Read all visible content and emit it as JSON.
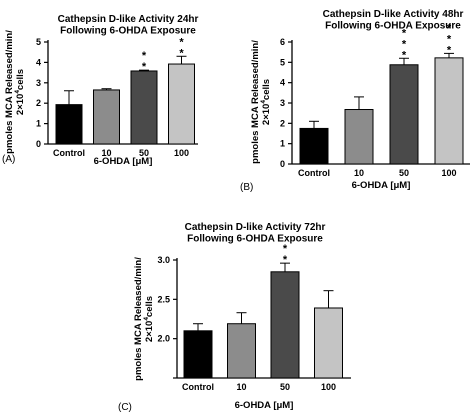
{
  "chart_data": [
    {
      "panel_label": "(A)",
      "type": "bar",
      "title": [
        "Cathepsin D-like Activity 24hr",
        "Following 6-OHDA Exposure"
      ],
      "xlabel": "6-OHDA [μM]",
      "ylabel": [
        "pmoles MCA Released/min/",
        "2×10",
        "4",
        "cells"
      ],
      "categories": [
        "Control",
        "10",
        "50",
        "100"
      ],
      "values": [
        1.93,
        2.65,
        3.58,
        3.92
      ],
      "errors": [
        0.68,
        0.06,
        0.04,
        0.38
      ],
      "significance": [
        "",
        "",
        "*\n*",
        "*\n*"
      ],
      "ylim": [
        0,
        5
      ],
      "yticks": [
        0,
        1,
        2,
        3,
        4,
        5
      ],
      "bar_colors": [
        "#000000",
        "#8c8c8c",
        "#4a4a4a",
        "#c4c4c4"
      ]
    },
    {
      "panel_label": "(B)",
      "type": "bar",
      "title": [
        "Cathepsin D-like Activity 48hr",
        "Following 6-OHDA Exposure"
      ],
      "xlabel": "6-OHDA [μM]",
      "ylabel": [
        "pmoles MCA Released/min/",
        "2×10",
        "4",
        "cells"
      ],
      "categories": [
        "Control",
        "10",
        "50",
        "100"
      ],
      "values": [
        1.75,
        2.68,
        4.88,
        5.22
      ],
      "errors": [
        0.35,
        0.62,
        0.32,
        0.22
      ],
      "significance": [
        "",
        "",
        "*\n*\n*",
        "*\n*\n*"
      ],
      "ylim": [
        0,
        6
      ],
      "yticks": [
        0,
        1,
        2,
        3,
        4,
        5,
        6
      ],
      "bar_colors": [
        "#000000",
        "#8c8c8c",
        "#4a4a4a",
        "#c4c4c4"
      ]
    },
    {
      "panel_label": "(C)",
      "type": "bar",
      "title": [
        "Cathepsin D-like Activity 72hr",
        "Following 6-OHDA Exposure"
      ],
      "xlabel": "6-OHDA [μM]",
      "ylabel": [
        "pmoles MCA Released/min/",
        "2×10",
        "4",
        "cells"
      ],
      "categories": [
        "Control",
        "10",
        "50",
        "100"
      ],
      "values": [
        2.1,
        2.19,
        2.85,
        2.39
      ],
      "errors": [
        0.09,
        0.14,
        0.11,
        0.22
      ],
      "significance": [
        "",
        "",
        "*\n*",
        ""
      ],
      "ylim": [
        1.5,
        3.0
      ],
      "yticks": [
        1.5,
        2.0,
        2.5,
        3.0
      ],
      "ytick_labels": [
        "",
        "2.0",
        "2.5",
        "3.0"
      ],
      "bar_colors": [
        "#000000",
        "#8c8c8c",
        "#4a4a4a",
        "#c4c4c4"
      ]
    }
  ]
}
